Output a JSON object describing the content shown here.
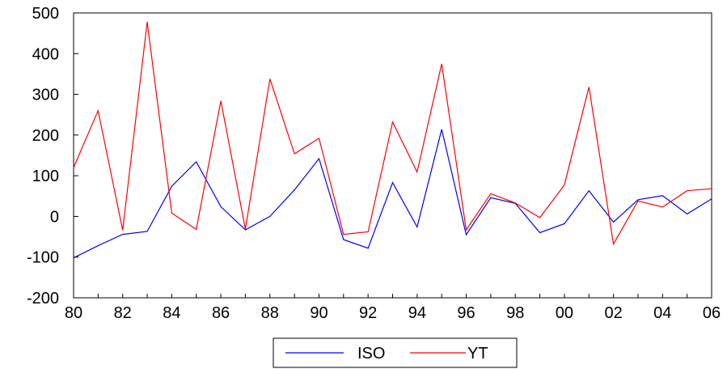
{
  "chart_data": {
    "type": "line",
    "title": "",
    "xlabel": "",
    "ylabel": "",
    "x": [
      1980,
      1981,
      1982,
      1983,
      1984,
      1985,
      1986,
      1987,
      1988,
      1989,
      1990,
      1991,
      1992,
      1993,
      1994,
      1995,
      1996,
      1997,
      1998,
      1999,
      2000,
      2001,
      2002,
      2003,
      2004,
      2005,
      2006
    ],
    "x_tick_labels": [
      "80",
      "82",
      "84",
      "86",
      "88",
      "90",
      "92",
      "94",
      "96",
      "98",
      "00",
      "02",
      "04",
      "06"
    ],
    "x_tick_values": [
      1980,
      1982,
      1984,
      1986,
      1988,
      1990,
      1992,
      1994,
      1996,
      1998,
      2000,
      2002,
      2004,
      2006
    ],
    "ylim": [
      -200,
      500
    ],
    "y_ticks": [
      -200,
      -100,
      0,
      100,
      200,
      300,
      400,
      500
    ],
    "y_tick_labels": [
      "-200",
      "-100",
      "0",
      "100",
      "200",
      "300",
      "400",
      "500"
    ],
    "grid": false,
    "legend_position": "bottom-center",
    "series": [
      {
        "name": "ISO",
        "color": "#0000ff",
        "values": [
          -102,
          -72,
          -44,
          -37,
          74,
          134,
          24,
          -33,
          0,
          65,
          142,
          -57,
          -78,
          83,
          -26,
          214,
          -45,
          46,
          32,
          -40,
          -18,
          63,
          -14,
          41,
          51,
          6,
          43
        ]
      },
      {
        "name": "YT",
        "color": "#ff0000",
        "values": [
          120,
          260,
          -34,
          478,
          8,
          -32,
          284,
          -31,
          338,
          154,
          192,
          -44,
          -38,
          232,
          109,
          375,
          -33,
          56,
          33,
          -3,
          77,
          318,
          -68,
          38,
          23,
          63,
          68
        ]
      }
    ]
  }
}
